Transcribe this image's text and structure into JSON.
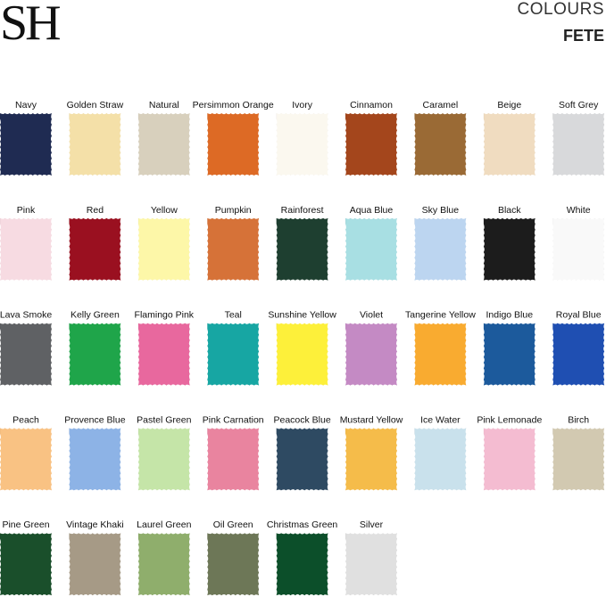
{
  "header": {
    "logo": "SH",
    "title": "COLOURS",
    "range": "FETE"
  },
  "swatches": [
    {
      "name": "Navy",
      "color": "#1f2b52"
    },
    {
      "name": "Golden Straw",
      "color": "#f4e0a8"
    },
    {
      "name": "Natural",
      "color": "#d8d0bd"
    },
    {
      "name": "Persimmon Orange",
      "color": "#dd6a25"
    },
    {
      "name": "Ivory",
      "color": "#fbf8ef"
    },
    {
      "name": "Cinnamon",
      "color": "#a4461c"
    },
    {
      "name": "Caramel",
      "color": "#9a6a35"
    },
    {
      "name": "Beige",
      "color": "#f0dcc0"
    },
    {
      "name": "Soft Grey",
      "color": "#d8d9db"
    },
    {
      "name": "Pink",
      "color": "#f7dbe2"
    },
    {
      "name": "Red",
      "color": "#9a1020"
    },
    {
      "name": "Yellow",
      "color": "#fdf7a8"
    },
    {
      "name": "Pumpkin",
      "color": "#d67238"
    },
    {
      "name": "Rainforest",
      "color": "#1e3f30"
    },
    {
      "name": "Aqua Blue",
      "color": "#a8dfe3"
    },
    {
      "name": "Sky Blue",
      "color": "#bcd5f0"
    },
    {
      "name": "Black",
      "color": "#1c1c1c"
    },
    {
      "name": "White",
      "color": "#f9f9f9"
    },
    {
      "name": "Lava Smoke",
      "color": "#5f6164"
    },
    {
      "name": "Kelly Green",
      "color": "#1fa54a"
    },
    {
      "name": "Flamingo Pink",
      "color": "#e8689e"
    },
    {
      "name": "Teal",
      "color": "#17a6a3"
    },
    {
      "name": "Sunshine Yellow",
      "color": "#fdf03a"
    },
    {
      "name": "Violet",
      "color": "#c48ac4"
    },
    {
      "name": "Tangerine Yellow",
      "color": "#f9ab30"
    },
    {
      "name": "Indigo Blue",
      "color": "#1c5a9c"
    },
    {
      "name": "Royal Blue",
      "color": "#1f4fb2"
    },
    {
      "name": "Peach",
      "color": "#f9c283"
    },
    {
      "name": "Provence Blue",
      "color": "#8db3e6"
    },
    {
      "name": "Pastel Green",
      "color": "#c5e5a8"
    },
    {
      "name": "Pink Carnation",
      "color": "#e9849f"
    },
    {
      "name": "Peacock Blue",
      "color": "#2e4a62"
    },
    {
      "name": "Mustard Yellow",
      "color": "#f5bc4a"
    },
    {
      "name": "Ice Water",
      "color": "#c9e1ec"
    },
    {
      "name": "Pink Lemonade",
      "color": "#f4bcd1"
    },
    {
      "name": "Birch",
      "color": "#d2c9b1"
    },
    {
      "name": "Pine Green",
      "color": "#1a4f2b"
    },
    {
      "name": "Vintage Khaki",
      "color": "#a69a86"
    },
    {
      "name": "Laurel Green",
      "color": "#8fae6c"
    },
    {
      "name": "Oil Green",
      "color": "#6d7757"
    },
    {
      "name": "Christmas Green",
      "color": "#0c4f2a"
    },
    {
      "name": "Silver",
      "color": "#e0e0e0"
    }
  ]
}
